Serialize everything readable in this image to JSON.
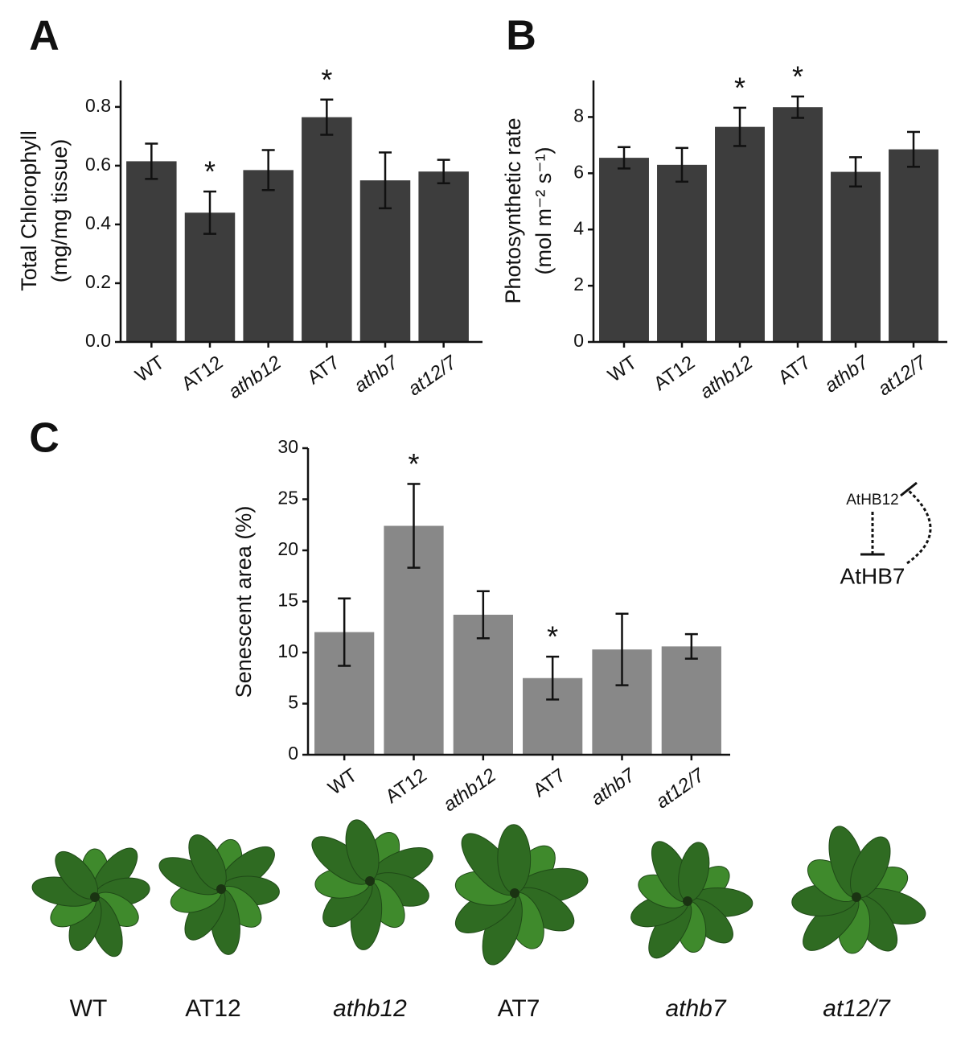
{
  "chart_data": [
    {
      "type": "bar",
      "panel": "A",
      "ylabel": [
        "Total Chlorophyll",
        "(mg/mg tissue)"
      ],
      "categories": [
        "WT",
        "AT12",
        "athb12",
        "AT7",
        "athb7",
        "at12/7"
      ],
      "category_italic": [
        false,
        false,
        true,
        false,
        true,
        true
      ],
      "values": [
        0.615,
        0.44,
        0.585,
        0.765,
        0.55,
        0.58
      ],
      "errors": [
        0.06,
        0.072,
        0.068,
        0.06,
        0.095,
        0.04
      ],
      "significance": [
        null,
        "*",
        null,
        "*",
        null,
        null
      ],
      "color": "#3d3d3d",
      "ylim": [
        0,
        0.89
      ],
      "yticks": [
        {
          "value": 0,
          "label": "0.0"
        },
        0.2,
        0.4,
        0.6,
        0.8
      ],
      "grid": false
    },
    {
      "type": "bar",
      "panel": "B",
      "ylabel": [
        "Photosynthetic rate",
        "(mol m⁻² s⁻¹)"
      ],
      "categories": [
        "WT",
        "AT12",
        "athb12",
        "AT7",
        "athb7",
        "at12/7"
      ],
      "category_italic": [
        false,
        false,
        true,
        false,
        true,
        true
      ],
      "values": [
        6.55,
        6.3,
        7.65,
        8.35,
        6.05,
        6.85
      ],
      "errors": [
        0.38,
        0.6,
        0.68,
        0.38,
        0.52,
        0.62
      ],
      "significance": [
        null,
        null,
        "*",
        "*",
        null,
        null
      ],
      "color": "#3d3d3d",
      "ylim": [
        0,
        9.3
      ],
      "yticks": [
        0,
        2,
        4,
        6,
        8
      ],
      "grid": false
    },
    {
      "type": "bar",
      "panel": "C",
      "ylabel": [
        "Senescent area (%)"
      ],
      "categories": [
        "WT",
        "AT12",
        "athb12",
        "AT7",
        "athb7",
        "at12/7"
      ],
      "category_italic": [
        false,
        false,
        true,
        false,
        true,
        true
      ],
      "values": [
        12,
        22.4,
        13.7,
        7.5,
        10.3,
        10.6
      ],
      "errors": [
        3.3,
        4.1,
        2.3,
        2.1,
        3.5,
        1.2
      ],
      "significance": [
        null,
        "*",
        null,
        "*",
        null,
        null
      ],
      "color": "#888888",
      "ylim": [
        0,
        30
      ],
      "yticks": [
        0,
        5,
        10,
        15,
        20,
        25,
        30
      ],
      "grid": false
    }
  ],
  "diagram": {
    "upper": "AtHB12",
    "lower": "AtHB7"
  },
  "photos": {
    "labels": [
      "WT",
      "AT12",
      "athb12",
      "AT7",
      "athb7",
      "at12/7"
    ],
    "italic": [
      false,
      false,
      true,
      false,
      true,
      true
    ]
  }
}
